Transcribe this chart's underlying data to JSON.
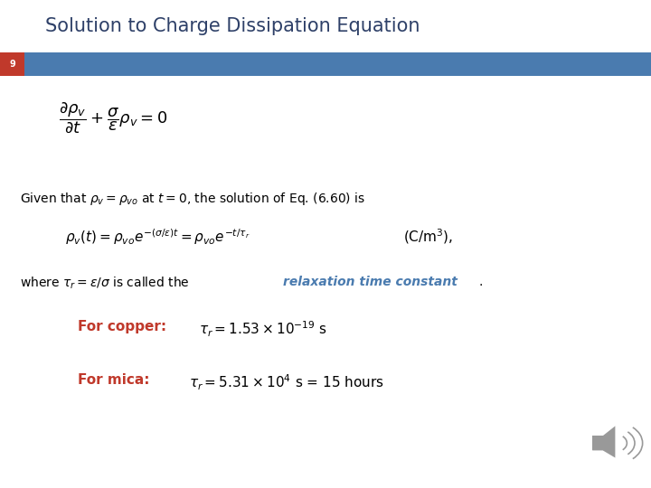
{
  "title": "Solution to Charge Dissipation Equation",
  "title_color": "#2E4068",
  "title_fontsize": 15,
  "slide_number": "9",
  "slide_num_color": "#FFFFFF",
  "slide_num_bg": "#C0392B",
  "bar_color": "#4A7BAF",
  "background_color": "#FFFFFF",
  "eq1": "$\\dfrac{\\partial \\rho_v}{\\partial t} + \\dfrac{\\sigma}{\\varepsilon}\\rho_v = 0$",
  "eq1_fontsize": 13,
  "text1": "Given that $\\rho_v = \\rho_{vo}$ at $t = 0$, the solution of Eq. (6.60) is",
  "text1_fontsize": 10,
  "eq2_left": "$\\rho_v(t) = \\rho_{vo}e^{-(\\sigma/\\varepsilon)t} = \\rho_{vo}e^{-t/\\tau_r}$",
  "eq2_right": "$(\\mathrm{C/m^3})$,",
  "eq2_fontsize": 11,
  "text2_regular": "where $\\tau_r = \\varepsilon/\\sigma$ is called the ",
  "text2_italic": "relaxation time constant",
  "text2_end": ".",
  "text2_fontsize": 10,
  "text2_italic_color": "#4A7BAF",
  "copper_label": "For copper:",
  "copper_label_color": "#C0392B",
  "copper_eq": "$\\tau_r = 1.53 \\times 10^{-19}$ s",
  "copper_fontsize": 11,
  "mica_label": "For mica:",
  "mica_label_color": "#C0392B",
  "mica_eq": "$\\tau_r = 5.31 \\times 10^{4}$ s = 15 hours",
  "mica_fontsize": 11,
  "speaker_icon_color": "#999999",
  "fig_width": 7.2,
  "fig_height": 5.4,
  "dpi": 100
}
